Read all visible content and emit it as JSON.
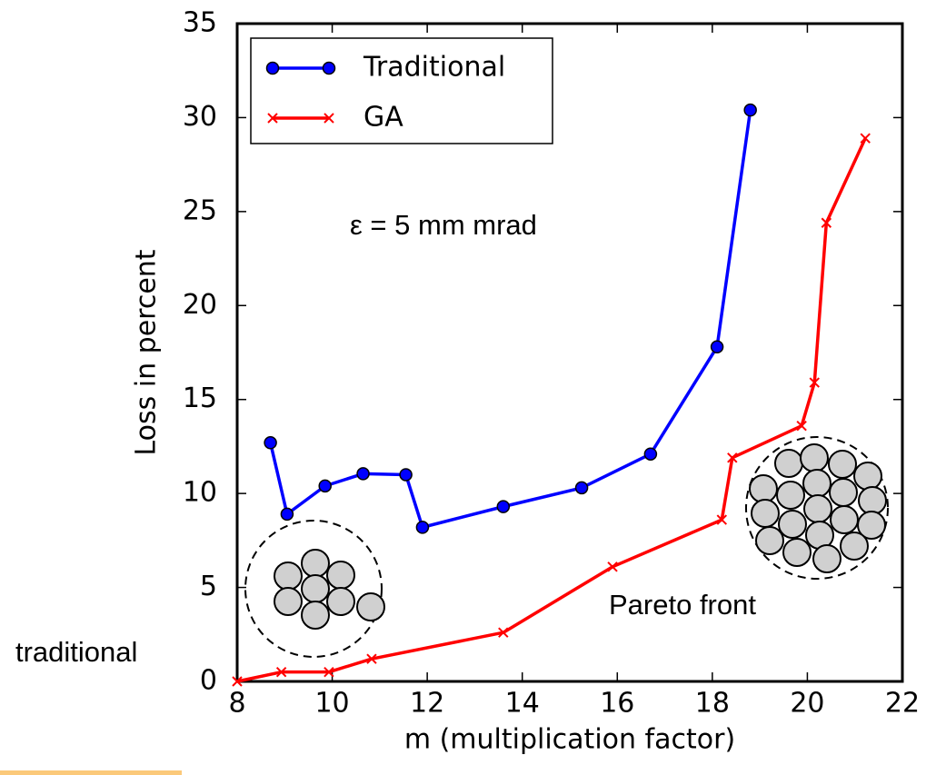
{
  "chart_data": {
    "type": "line",
    "xlabel": "m (multiplication factor)",
    "ylabel": "Loss in percent",
    "xlim": [
      8,
      22
    ],
    "ylim": [
      0,
      35
    ],
    "xticks": [
      8,
      10,
      12,
      14,
      16,
      18,
      20,
      22
    ],
    "yticks": [
      0,
      5,
      10,
      15,
      20,
      25,
      30,
      35
    ],
    "legend": "upper left",
    "series": [
      {
        "name": "Traditional",
        "color": "#0000ff",
        "marker": "circle",
        "x": [
          8.7,
          9.05,
          9.85,
          10.65,
          11.55,
          11.9,
          13.6,
          15.25,
          16.7,
          18.1,
          18.8
        ],
        "values": [
          12.7,
          8.9,
          10.4,
          11.05,
          11.0,
          8.2,
          9.3,
          10.3,
          12.1,
          17.8,
          30.4
        ]
      },
      {
        "name": "GA",
        "color": "#ff0000",
        "marker": "x",
        "x": [
          8.0,
          8.93,
          9.93,
          10.83,
          13.6,
          15.9,
          18.2,
          18.42,
          19.88,
          20.15,
          20.4,
          21.22
        ],
        "values": [
          0,
          0.5,
          0.5,
          1.2,
          2.6,
          6.1,
          8.6,
          11.9,
          13.6,
          15.9,
          24.4,
          28.9
        ]
      }
    ],
    "annotations": [
      "ε = 5 mm mrad",
      "Pareto front",
      "traditional"
    ]
  }
}
